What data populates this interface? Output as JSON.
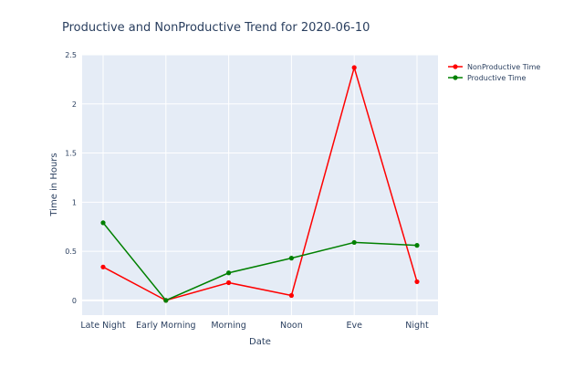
{
  "chart_data": {
    "type": "line",
    "title": "Productive and NonProductive Trend for 2020-06-10",
    "xlabel": "Date",
    "ylabel": "Time in Hours",
    "categories": [
      "Late Night",
      "Early Morning",
      "Morning",
      "Noon",
      "Eve",
      "Night"
    ],
    "yticks": [
      "0",
      "0.5",
      "1",
      "1.5",
      "2",
      "2.5"
    ],
    "ylim": [
      -0.15,
      2.5
    ],
    "grid": true,
    "legend_position": "top-right",
    "series": [
      {
        "name": "NonProductive Time",
        "color": "#ff0000",
        "values": [
          0.34,
          0.0,
          0.18,
          0.05,
          2.37,
          0.19
        ]
      },
      {
        "name": "Productive Time",
        "color": "#008000",
        "values": [
          0.79,
          0.0,
          0.28,
          0.43,
          0.59,
          0.56
        ]
      }
    ],
    "colors": {
      "plot_background": "#e5ecf6",
      "gridline": "#ffffff",
      "text": "#2a3f5f"
    }
  }
}
